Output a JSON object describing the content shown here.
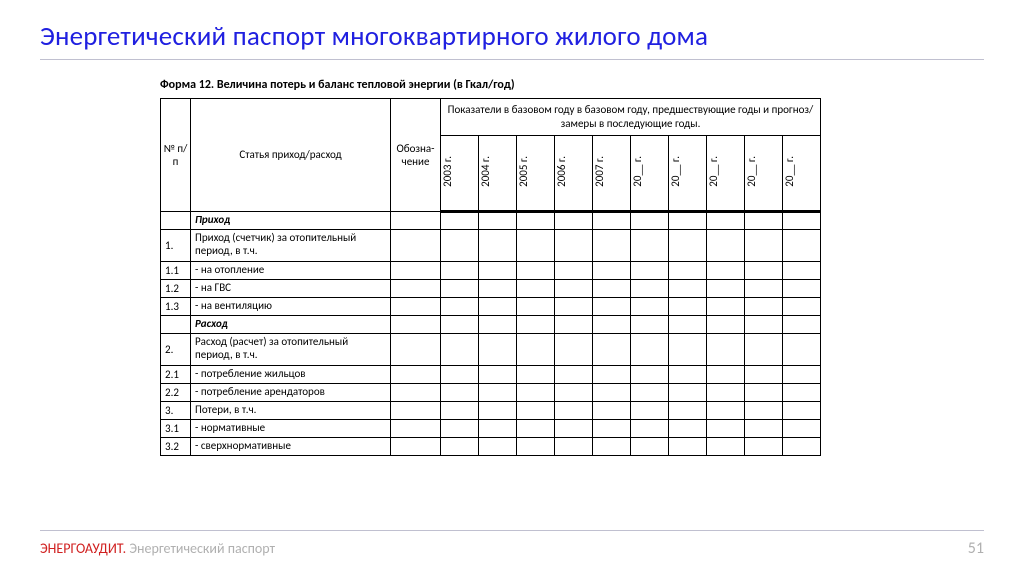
{
  "title": "Энергетический паспорт многоквартирного жилого дома",
  "form_caption": "Форма 12. Величина потерь и баланс тепловой энергии (в Гкал/год)",
  "table": {
    "header": {
      "col_num": "№ п/п",
      "col_article": "Статья приход/расход",
      "col_oboz": "Обозна-чение",
      "group_title": "Показатели в базовом году в базовом году, предшествующие годы и прогноз/замеры в  последующие годы.",
      "years": [
        "2003 г.",
        "2004 г.",
        "2005 г.",
        "2006 г.",
        "2007 г.",
        "20__ г.",
        "20__ г.",
        "20__ г.",
        "20__ г.",
        "20__ г."
      ]
    },
    "rows": [
      {
        "num": "",
        "article": "Приход",
        "section": true
      },
      {
        "num": "1.",
        "article": "Приход (счетчик) за отопительный период, в т.ч.",
        "tall": true
      },
      {
        "num": "1.1",
        "article": "- на отопление"
      },
      {
        "num": "1.2",
        "article": "- на ГВС"
      },
      {
        "num": "1.3",
        "article": "- на вентиляцию"
      },
      {
        "num": "",
        "article": "Расход",
        "section": true
      },
      {
        "num": "2.",
        "article": "Расход (расчет) за отопительный период, в т.ч.",
        "tall": true
      },
      {
        "num": "2.1",
        "article": "- потребление жильцов"
      },
      {
        "num": "2.2",
        "article": "- потребление арендаторов"
      },
      {
        "num": "3.",
        "article": "Потери, в т.ч."
      },
      {
        "num": "3.1",
        "article": "- нормативные"
      },
      {
        "num": "3.2",
        "article": "- сверхнормативные"
      }
    ]
  },
  "footer": {
    "brand": "ЭНЕРГОАУДИТ.",
    "sub": " Энергетический паспорт",
    "page": "51"
  },
  "colors": {
    "title": "#2020e0",
    "brand": "#d02020",
    "muted": "#b0b0b0",
    "rule": "#c0c0d0",
    "border": "#000000",
    "bg": "#ffffff"
  }
}
